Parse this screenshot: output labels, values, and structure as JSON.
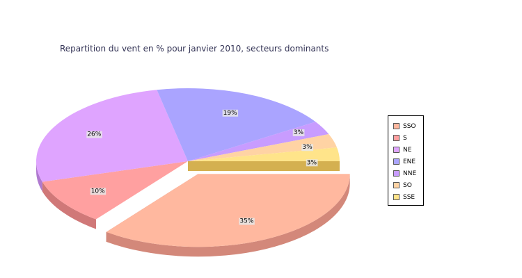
{
  "chart_data": {
    "type": "pie",
    "title": "Repartition du vent en % pour janvier 2010, secteurs dominants",
    "slices": [
      {
        "name": "SSO",
        "value": 35,
        "label": "35%",
        "color": "#ffb89f",
        "side": "#d3887a",
        "exploded": true
      },
      {
        "name": "S",
        "value": 10,
        "label": "10%",
        "color": "#ffa0a0",
        "side": "#d07878",
        "exploded": false
      },
      {
        "name": "NE",
        "value": 26,
        "label": "26%",
        "color": "#dfa4ff",
        "side": "#b07ad0",
        "exploded": false
      },
      {
        "name": "ENE",
        "value": 19,
        "label": "19%",
        "color": "#aaa4ff",
        "side": "#8a84d8",
        "exploded": false
      },
      {
        "name": "NNE",
        "value": 3,
        "label": "3%",
        "color": "#c89cff",
        "side": "#a07ad8",
        "exploded": false
      },
      {
        "name": "SO",
        "value": 3,
        "label": "3%",
        "color": "#ffd3a4",
        "side": "#d8a87a",
        "exploded": false
      },
      {
        "name": "SSE",
        "value": 3,
        "label": "3%",
        "color": "#ffe48a",
        "side": "#d4b050",
        "exploded": false
      }
    ],
    "legend_position": "right"
  }
}
